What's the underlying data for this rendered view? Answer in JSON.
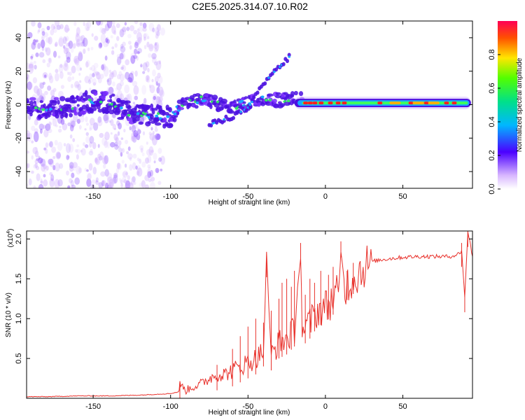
{
  "title": "C2E5.2025.314.07.10.R02",
  "colors": {
    "red_line": "#e8302a",
    "axis": "#000000",
    "background": "#ffffff"
  },
  "chart_data": [
    {
      "type": "heatmap",
      "name": "spectrogram",
      "xlabel": "Height of straight line (km)",
      "ylabel": "Frequency (Hz)",
      "xlim": [
        -193,
        95
      ],
      "ylim": [
        -50,
        50
      ],
      "x_ticks": [
        -150,
        -100,
        -50,
        0,
        50
      ],
      "x_tick_labels": [
        "-150",
        "-100",
        "-50",
        "0",
        "50"
      ],
      "y_ticks": [
        -40,
        -20,
        0,
        20,
        40
      ],
      "y_tick_labels": [
        "-40",
        "-20",
        "0",
        "20",
        "40"
      ],
      "ridge": [
        {
          "x": -190,
          "y": -2
        },
        {
          "x": -170,
          "y": -2
        },
        {
          "x": -160,
          "y": 0
        },
        {
          "x": -150,
          "y": 2
        },
        {
          "x": -140,
          "y": 1
        },
        {
          "x": -130,
          "y": -4
        },
        {
          "x": -120,
          "y": -6
        },
        {
          "x": -110,
          "y": -7
        },
        {
          "x": -100,
          "y": -7
        },
        {
          "x": -90,
          "y": 2
        },
        {
          "x": -80,
          "y": 3
        },
        {
          "x": -70,
          "y": 0
        },
        {
          "x": -60,
          "y": -1
        },
        {
          "x": -50,
          "y": 1
        },
        {
          "x": -40,
          "y": 3
        },
        {
          "x": -30,
          "y": 3
        },
        {
          "x": -20,
          "y": 4
        },
        {
          "x": -10,
          "y": 2
        },
        {
          "x": 0,
          "y": 1
        },
        {
          "x": 20,
          "y": 1
        },
        {
          "x": 50,
          "y": 1
        },
        {
          "x": 80,
          "y": 1
        },
        {
          "x": 95,
          "y": 1
        }
      ],
      "branch": [
        {
          "x": -75,
          "y": -12
        },
        {
          "x": -60,
          "y": -7
        },
        {
          "x": -50,
          "y": -2
        },
        {
          "x": -45,
          "y": 5
        },
        {
          "x": -40,
          "y": 12
        },
        {
          "x": -35,
          "y": 18
        },
        {
          "x": -30,
          "y": 22
        },
        {
          "x": -23,
          "y": 29
        }
      ],
      "colorbar": {
        "label": "Normalized spectral amplitude",
        "range": [
          0,
          1
        ],
        "ticks": [
          0.0,
          0.2,
          0.4,
          0.6,
          0.8
        ],
        "tick_labels": [
          "0.0",
          "0.2",
          "0.4",
          "0.6",
          "0.8"
        ]
      }
    },
    {
      "type": "line",
      "name": "snr",
      "xlabel": "Height of straight line (km)",
      "ylabel": "SNR (10 * v/v)",
      "y_multiplier": "(x10",
      "y_multiplier_exp": "4",
      "y_multiplier_close": ")",
      "xlim": [
        -193,
        95
      ],
      "ylim": [
        0,
        2.1
      ],
      "x_ticks": [
        -150,
        -100,
        -50,
        0,
        50
      ],
      "x_tick_labels": [
        "-150",
        "-100",
        "-50",
        "0",
        "50"
      ],
      "y_ticks": [
        0.5,
        1.0,
        1.5,
        2.0
      ],
      "y_tick_labels": [
        "0.5",
        "1.0",
        "1.5",
        "2.0"
      ],
      "series": [
        {
          "name": "SNR",
          "color": "#e8302a",
          "x": [
            -193,
            -180,
            -160,
            -140,
            -120,
            -110,
            -100,
            -95,
            -94,
            -90,
            -85,
            -80,
            -75,
            -70,
            -65,
            -60,
            -55,
            -50,
            -45,
            -40,
            -38,
            -35,
            -30,
            -25,
            -20,
            -16,
            -15,
            -10,
            -5,
            0,
            5,
            9,
            10,
            12,
            15,
            20,
            25,
            30,
            40,
            50,
            60,
            70,
            80,
            85,
            88,
            90,
            92,
            95
          ],
          "y": [
            0.02,
            0.02,
            0.03,
            0.03,
            0.04,
            0.05,
            0.06,
            0.08,
            0.18,
            0.1,
            0.15,
            0.18,
            0.25,
            0.3,
            0.3,
            0.35,
            0.4,
            0.45,
            0.5,
            0.6,
            1.72,
            0.55,
            0.7,
            0.75,
            0.85,
            1.95,
            0.85,
            0.95,
            1.1,
            1.15,
            1.25,
            1.35,
            1.97,
            1.4,
            1.45,
            1.55,
            1.65,
            1.72,
            1.75,
            1.77,
            1.78,
            1.78,
            1.78,
            1.8,
            1.85,
            1.28,
            2.1,
            1.78
          ]
        }
      ],
      "spikes": [
        {
          "x": -94,
          "y": 0.18
        },
        {
          "x": -70,
          "y": 0.42
        },
        {
          "x": -60,
          "y": 0.62
        },
        {
          "x": -55,
          "y": 0.78
        },
        {
          "x": -50,
          "y": 0.9
        },
        {
          "x": -45,
          "y": 1.0
        },
        {
          "x": -40,
          "y": 0.95
        },
        {
          "x": -38,
          "y": 1.72
        },
        {
          "x": -35,
          "y": 1.1
        },
        {
          "x": -30,
          "y": 1.25
        },
        {
          "x": -28,
          "y": 1.45
        },
        {
          "x": -25,
          "y": 1.5
        },
        {
          "x": -22,
          "y": 1.4
        },
        {
          "x": -20,
          "y": 1.6
        },
        {
          "x": -16,
          "y": 1.95
        },
        {
          "x": -13,
          "y": 1.3
        },
        {
          "x": -10,
          "y": 1.5
        },
        {
          "x": -7,
          "y": 1.45
        },
        {
          "x": -3,
          "y": 1.6
        },
        {
          "x": 2,
          "y": 1.55
        },
        {
          "x": 5,
          "y": 1.65
        },
        {
          "x": 10,
          "y": 1.97
        },
        {
          "x": 14,
          "y": 1.6
        },
        {
          "x": 18,
          "y": 1.7
        },
        {
          "x": 88,
          "y": 1.95
        },
        {
          "x": 90,
          "y": 1.28
        },
        {
          "x": 92,
          "y": 2.1
        }
      ]
    }
  ]
}
